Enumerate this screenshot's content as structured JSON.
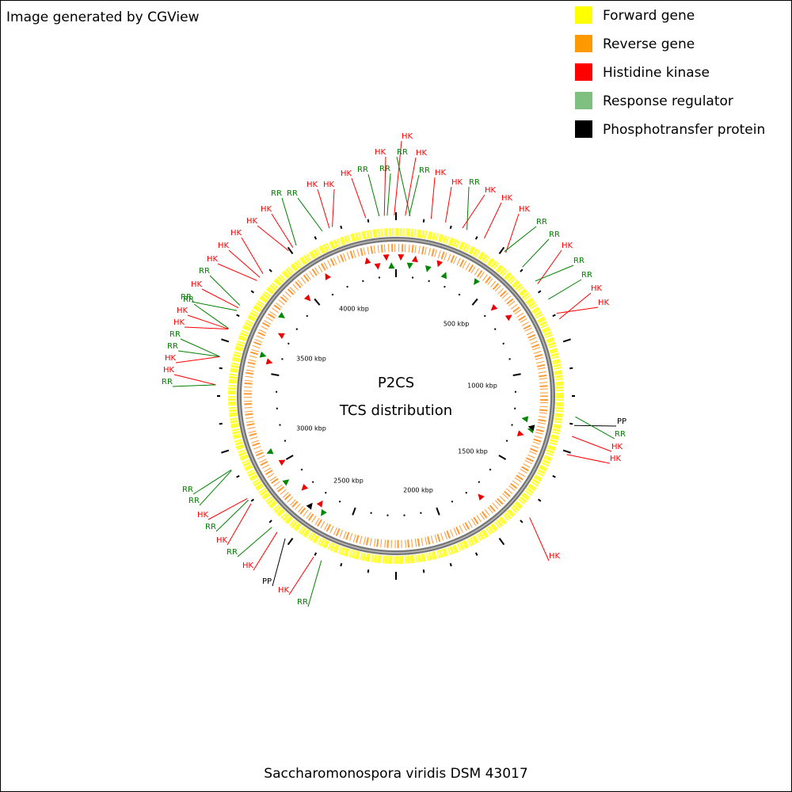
{
  "header": {
    "credit": "Image generated by CGView"
  },
  "legend": [
    {
      "label": "Forward gene",
      "color": "#ffff00"
    },
    {
      "label": "Reverse gene",
      "color": "#ff9900"
    },
    {
      "label": "Histidine kinase",
      "color": "#ff0000"
    },
    {
      "label": "Response regulator",
      "color": "#7fbf7f"
    },
    {
      "label": "Phosphotransfer protein",
      "color": "#000000"
    }
  ],
  "center": {
    "title": "P2CS",
    "subtitle": "TCS distribution"
  },
  "ruler": [
    "500 kbp",
    "1000 kbp",
    "1500 kbp",
    "2000 kbp",
    "2500 kbp",
    "3000 kbp",
    "3500 kbp",
    "4000 kbp"
  ],
  "features": [
    {
      "label": "HK",
      "color": "#ff0000"
    },
    {
      "label": "HK",
      "color": "#ff0000"
    },
    {
      "label": "RR",
      "color": "#008000"
    },
    {
      "label": "HK",
      "color": "#ff0000"
    },
    {
      "label": "RR",
      "color": "#008000"
    },
    {
      "label": "RR",
      "color": "#008000"
    },
    {
      "label": "RR",
      "color": "#008000"
    },
    {
      "label": "HK",
      "color": "#ff0000"
    },
    {
      "label": "HK",
      "color": "#ff0000"
    },
    {
      "label": "HK",
      "color": "#ff0000"
    },
    {
      "label": "HK",
      "color": "#ff0000"
    },
    {
      "label": "RR",
      "color": "#008000"
    },
    {
      "label": "RR",
      "color": "#008000"
    },
    {
      "label": "HK",
      "color": "#ff0000"
    },
    {
      "label": "RR",
      "color": "#008000"
    },
    {
      "label": "HK",
      "color": "#ff0000"
    },
    {
      "label": "HK",
      "color": "#ff0000"
    },
    {
      "label": "HK",
      "color": "#ff0000"
    },
    {
      "label": "RR",
      "color": "#008000"
    },
    {
      "label": "RR",
      "color": "#008000"
    },
    {
      "label": "HK",
      "color": "#ff0000"
    },
    {
      "label": "RR",
      "color": "#008000"
    },
    {
      "label": "RR",
      "color": "#008000"
    },
    {
      "label": "HK",
      "color": "#ff0000"
    },
    {
      "label": "HK",
      "color": "#ff0000"
    },
    {
      "label": "HK",
      "color": "#ff0000"
    },
    {
      "label": "HK",
      "color": "#ff0000"
    },
    {
      "label": "HK",
      "color": "#ff0000"
    },
    {
      "label": "HK",
      "color": "#ff0000"
    },
    {
      "label": "HK",
      "color": "#ff0000"
    },
    {
      "label": "RR",
      "color": "#008000"
    },
    {
      "label": "HK",
      "color": "#ff0000"
    },
    {
      "label": "RR",
      "color": "#008000"
    },
    {
      "label": "RR",
      "color": "#008000"
    },
    {
      "label": "HK",
      "color": "#ff0000"
    },
    {
      "label": "HK",
      "color": "#ff0000"
    },
    {
      "label": "RR",
      "color": "#008000"
    },
    {
      "label": "RR",
      "color": "#008000"
    },
    {
      "label": "HK",
      "color": "#ff0000"
    },
    {
      "label": "HK",
      "color": "#ff0000"
    },
    {
      "label": "RR",
      "color": "#008000"
    },
    {
      "label": "PP",
      "color": "#000000"
    },
    {
      "label": "RR",
      "color": "#008000"
    },
    {
      "label": "HK",
      "color": "#ff0000"
    },
    {
      "label": "HK",
      "color": "#ff0000"
    },
    {
      "label": "HK",
      "color": "#ff0000"
    },
    {
      "label": "RR",
      "color": "#008000"
    },
    {
      "label": "RR",
      "color": "#008000"
    },
    {
      "label": "HK",
      "color": "#ff0000"
    },
    {
      "label": "RR",
      "color": "#008000"
    },
    {
      "label": "HK",
      "color": "#ff0000"
    },
    {
      "label": "RR",
      "color": "#008000"
    },
    {
      "label": "HK",
      "color": "#ff0000"
    },
    {
      "label": "PP",
      "color": "#000000"
    },
    {
      "label": "HK",
      "color": "#ff0000"
    },
    {
      "label": "RR",
      "color": "#008000"
    }
  ],
  "footer": "Saccharomonospora viridis DSM 43017"
}
